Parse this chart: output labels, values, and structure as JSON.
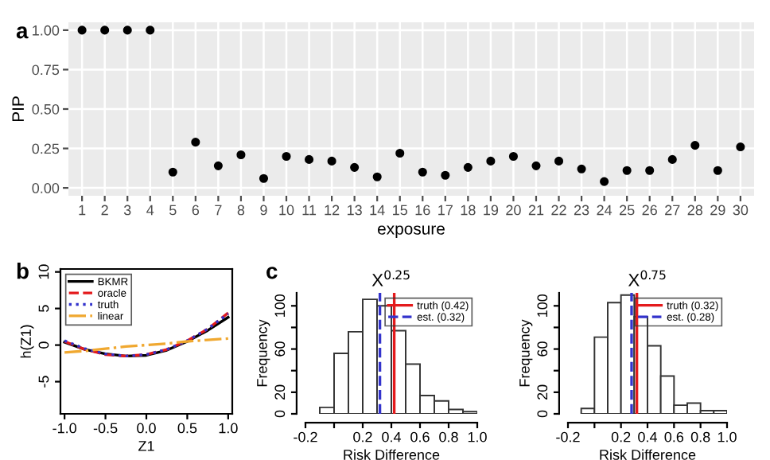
{
  "chart_data": [
    {
      "type": "scatter",
      "annotations": [
        "a"
      ],
      "xlabel": "exposure",
      "ylabel": "PIP",
      "categories": [
        "1",
        "2",
        "3",
        "4",
        "5",
        "6",
        "7",
        "8",
        "9",
        "10",
        "11",
        "12",
        "13",
        "14",
        "15",
        "16",
        "17",
        "18",
        "19",
        "20",
        "21",
        "22",
        "23",
        "24",
        "25",
        "26",
        "27",
        "28",
        "29",
        "30"
      ],
      "series": [
        {
          "color": "#000000",
          "values": [
            1,
            1,
            1,
            1,
            0.1,
            0.29,
            0.14,
            0.21,
            0.06,
            0.2,
            0.18,
            0.17,
            0.13,
            0.07,
            0.22,
            0.1,
            0.08,
            0.13,
            0.17,
            0.2,
            0.14,
            0.17,
            0.12,
            0.04,
            0.11,
            0.11,
            0.18,
            0.27,
            0.11,
            0.26
          ]
        }
      ],
      "ylim": [
        -0.05,
        1.05
      ],
      "yticks": [
        {
          "value": 0,
          "label": "0.00"
        },
        {
          "value": 0.25,
          "label": "0.25"
        },
        {
          "value": 0.5,
          "label": "0.50"
        },
        {
          "value": 0.75,
          "label": "0.75"
        },
        {
          "value": 1,
          "label": "1.00"
        }
      ],
      "grid": true,
      "marker": "circle"
    },
    {
      "type": "line",
      "annotations": [
        "b"
      ],
      "xlabel": "Z1",
      "ylabel": "h(Z1)",
      "x": [
        -1,
        -0.75,
        -0.5,
        -0.25,
        0,
        0.25,
        0.5,
        0.75,
        1
      ],
      "series": [
        {
          "name": "BKMR",
          "color": "#000000",
          "line_style": "solid",
          "values": [
            0.4,
            -0.6,
            -1.2,
            -1.5,
            -1.4,
            -0.7,
            0.5,
            2.0,
            3.8
          ]
        },
        {
          "name": "oracle",
          "color": "#e41a1c",
          "line_style": "dashed",
          "values": [
            0.5,
            -0.6,
            -1.3,
            -1.5,
            -1.3,
            -0.6,
            0.6,
            2.2,
            4.4
          ]
        },
        {
          "name": "truth",
          "color": "#3333cc",
          "line_style": "dotted",
          "values": [
            0.6,
            -0.5,
            -1.2,
            -1.5,
            -1.3,
            -0.6,
            0.6,
            2.2,
            4.3
          ]
        },
        {
          "name": "linear",
          "color": "#f0a830",
          "line_style": "dashdot",
          "values": [
            -1.0,
            -0.8,
            -0.5,
            -0.2,
            0,
            0.2,
            0.5,
            0.7,
            0.9
          ]
        }
      ],
      "xlim": [
        -1.05,
        1.05
      ],
      "xticks": [
        {
          "value": -1,
          "label": "-1.0"
        },
        {
          "value": -0.5,
          "label": "-0.5"
        },
        {
          "value": 0,
          "label": "0.0"
        },
        {
          "value": 0.5,
          "label": "0.5"
        },
        {
          "value": 1,
          "label": "1.0"
        }
      ],
      "ylim": [
        -9.4,
        10.4
      ],
      "yticks": [
        -5,
        0,
        5,
        10
      ],
      "legend": "top left"
    },
    {
      "type": "histogram",
      "annotations": [
        "c"
      ],
      "title": "X$^{0.25}$",
      "xlabel": "Risk Difference",
      "ylabel": "Frequency",
      "bins": [
        -0.1,
        0,
        0.1,
        0.2,
        0.3,
        0.4,
        0.5,
        0.6,
        0.7,
        0.8,
        0.9,
        1.0
      ],
      "values": [
        6,
        56,
        76,
        106,
        100,
        77,
        46,
        17,
        12,
        4,
        2
      ],
      "xlim": [
        -0.2,
        1.0
      ],
      "xticks": [
        -0.2,
        {
          "value": 0,
          "label": null
        },
        0.2,
        0.4,
        0.6,
        0.8,
        {
          "value": 1.0,
          "label": "1.0"
        }
      ],
      "ylim": [
        0,
        112
      ],
      "yticks": [
        0,
        20,
        {
          "value": 40,
          "label": null
        },
        60,
        {
          "value": 80,
          "label": null
        },
        100
      ],
      "ref_lines": [
        {
          "axis": "x",
          "value": 0.42,
          "label": "truth (0.42)",
          "color": "#e41a1c",
          "line_style": "solid"
        },
        {
          "axis": "x",
          "value": 0.32,
          "label": "est. (0.32)",
          "color": "#3333cc",
          "line_style": "dashed"
        }
      ],
      "legend": "top right"
    },
    {
      "type": "histogram",
      "title": "X$^{0.75}$",
      "xlabel": "Risk Difference",
      "ylabel": "Frequency",
      "bins": [
        -0.1,
        0,
        0.1,
        0.2,
        0.3,
        0.4,
        0.5,
        0.6,
        0.7,
        0.8,
        0.9,
        1.0
      ],
      "values": [
        5,
        71,
        103,
        110,
        90,
        63,
        35,
        8,
        10,
        3,
        3
      ],
      "xlim": [
        -0.2,
        1.0
      ],
      "xticks": [
        -0.2,
        {
          "value": 0,
          "label": null
        },
        0.2,
        0.4,
        0.6,
        0.8,
        {
          "value": 1.0,
          "label": "1.0"
        }
      ],
      "ylim": [
        0,
        112
      ],
      "yticks": [
        0,
        20,
        {
          "value": 40,
          "label": null
        },
        60,
        {
          "value": 80,
          "label": null
        },
        100
      ],
      "ref_lines": [
        {
          "axis": "x",
          "value": 0.32,
          "label": "truth (0.32)",
          "color": "#e41a1c",
          "line_style": "solid"
        },
        {
          "axis": "x",
          "value": 0.28,
          "label": "est. (0.28)",
          "color": "#3333cc",
          "line_style": "dashed"
        }
      ],
      "legend": "top right"
    }
  ]
}
